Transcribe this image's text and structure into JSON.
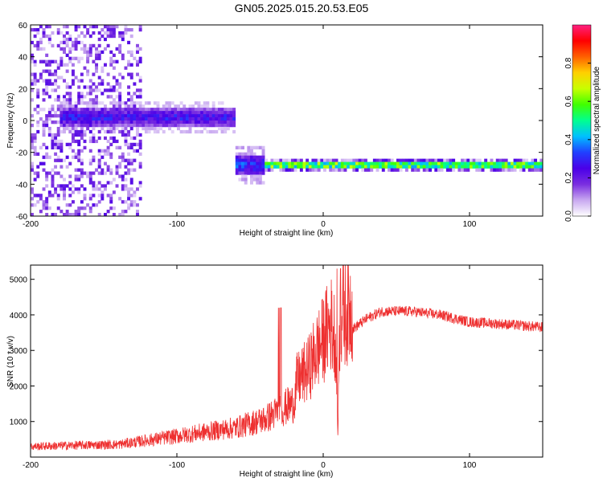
{
  "title": "GN05.2025.015.20.53.E05",
  "chart_data": [
    {
      "type": "heatmap",
      "title": "",
      "xlabel": "Height of straight line (km)",
      "ylabel": "Frequency (Hz)",
      "xlim": [
        -200,
        150
      ],
      "ylim": [
        -60,
        60
      ],
      "xticks": [
        -200,
        -100,
        0,
        100
      ],
      "yticks": [
        -60,
        -40,
        -20,
        0,
        20,
        40,
        60
      ],
      "colorbar": {
        "label": "Normalized spectral amplitude",
        "range": [
          0,
          1
        ],
        "ticks": [
          0.0,
          0.2,
          0.4,
          0.6,
          0.8
        ],
        "tick_labels": [
          "0.0",
          "0.2",
          "0.4",
          "0.6",
          "0.8"
        ],
        "colors": [
          "#ffffff",
          "#c8a8f0",
          "#7a2ee0",
          "#4a00e8",
          "#2040ff",
          "#00c0ff",
          "#00ff90",
          "#40ff00",
          "#c8ff00",
          "#ffd000",
          "#ff6000",
          "#ff0000",
          "#ff2080"
        ]
      },
      "features": [
        {
          "x_range": [
            -200,
            -125
          ],
          "freq_range": [
            -60,
            60
          ],
          "amplitude": 0.15,
          "kind": "scattered noise"
        },
        {
          "x_range": [
            -180,
            -60
          ],
          "freq_center": 2,
          "freq_width": 10,
          "amplitude": 0.3,
          "kind": "band"
        },
        {
          "x_range": [
            -60,
            -40
          ],
          "freq_center": -28,
          "freq_width": 12,
          "amplitude": 0.35,
          "kind": "band"
        },
        {
          "x_range": [
            -40,
            150
          ],
          "freq_center": -28,
          "freq_width": 3,
          "amplitude": 0.85,
          "kind": "band"
        }
      ]
    },
    {
      "type": "line",
      "title": "",
      "xlabel": "Height of straight line (km)",
      "ylabel": "SNR (10 * v/v)",
      "xlim": [
        -200,
        150
      ],
      "ylim": [
        0,
        5400
      ],
      "xticks": [
        -200,
        -100,
        0,
        100
      ],
      "yticks": [
        1000,
        2000,
        3000,
        4000,
        5000
      ],
      "color": "#ee3030",
      "envelope_x": [
        -200,
        -170,
        -140,
        -120,
        -100,
        -80,
        -60,
        -40,
        -30,
        -25,
        -20,
        -18,
        -10,
        -5,
        0,
        5,
        9,
        10,
        11,
        13,
        20,
        30,
        40,
        60,
        80,
        100,
        120,
        150
      ],
      "envelope_y": [
        250,
        280,
        300,
        400,
        500,
        600,
        700,
        900,
        1100,
        1200,
        1300,
        1800,
        2100,
        2500,
        2800,
        3200,
        2800,
        500,
        3100,
        3400,
        3600,
        3900,
        4100,
        4100,
        4000,
        3800,
        3750,
        3650
      ]
    }
  ]
}
